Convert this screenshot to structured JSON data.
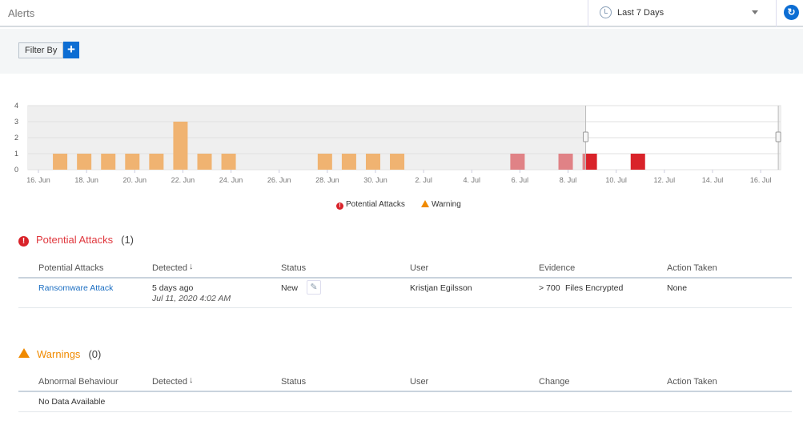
{
  "header": {
    "title": "Alerts",
    "time_range": "Last 7 Days"
  },
  "filter": {
    "label": "Filter By",
    "add": "+"
  },
  "colors": {
    "warning": "#f0b371",
    "attack_unselected": "#e08286",
    "attack_selected": "#d9232a",
    "accent": "#0c6dd3"
  },
  "chart_data": {
    "type": "bar",
    "title": "",
    "xlabel": "",
    "ylabel": "",
    "ylim": [
      0,
      4
    ],
    "yticks": [
      "0",
      "1",
      "2",
      "3",
      "4"
    ],
    "xticks": [
      "16. Jun",
      "18. Jun",
      "20. Jun",
      "22. Jun",
      "24. Jun",
      "26. Jun",
      "28. Jun",
      "30. Jun",
      "2. Jul",
      "4. Jul",
      "6. Jul",
      "8. Jul",
      "10. Jul",
      "12. Jul",
      "14. Jul",
      "16. Jul"
    ],
    "xrange": [
      "2020-06-15",
      "2020-07-17"
    ],
    "selected_range": [
      "2020-07-08",
      "2020-07-16"
    ],
    "grid": true,
    "legend_position": "bottom",
    "series": [
      {
        "name": "Potential Attacks",
        "color": "#d9232a",
        "points": [
          [
            "2020-07-06",
            1
          ],
          [
            "2020-07-08",
            1
          ],
          [
            "2020-07-09",
            1
          ],
          [
            "2020-07-11",
            1
          ]
        ]
      },
      {
        "name": "Warning",
        "color": "#f0b371",
        "points": [
          [
            "2020-06-17",
            1
          ],
          [
            "2020-06-18",
            1
          ],
          [
            "2020-06-19",
            1
          ],
          [
            "2020-06-20",
            1
          ],
          [
            "2020-06-21",
            1
          ],
          [
            "2020-06-22",
            3
          ],
          [
            "2020-06-23",
            1
          ],
          [
            "2020-06-24",
            1
          ],
          [
            "2020-06-28",
            1
          ],
          [
            "2020-06-29",
            1
          ],
          [
            "2020-06-30",
            1
          ],
          [
            "2020-07-01",
            1
          ]
        ]
      }
    ]
  },
  "legend": {
    "attacks": "Potential Attacks",
    "warning": "Warning"
  },
  "attacks": {
    "title": "Potential Attacks",
    "count": "(1)",
    "columns": [
      "Potential Attacks",
      "Detected",
      "Status",
      "User",
      "Evidence",
      "Action Taken"
    ],
    "rows": [
      {
        "name": "Ransomware Attack",
        "detected": "5 days ago",
        "detected_time": "Jul 11, 2020 4:02 AM",
        "status": "New",
        "user": "Kristjan Egilsson",
        "evidence_count": "> 700",
        "evidence": "Files Encrypted",
        "action": "None"
      }
    ]
  },
  "warnings": {
    "title": "Warnings",
    "count": "(0)",
    "columns": [
      "Abnormal Behaviour",
      "Detected",
      "Status",
      "User",
      "Change",
      "Action Taken"
    ],
    "empty": "No Data Available"
  }
}
